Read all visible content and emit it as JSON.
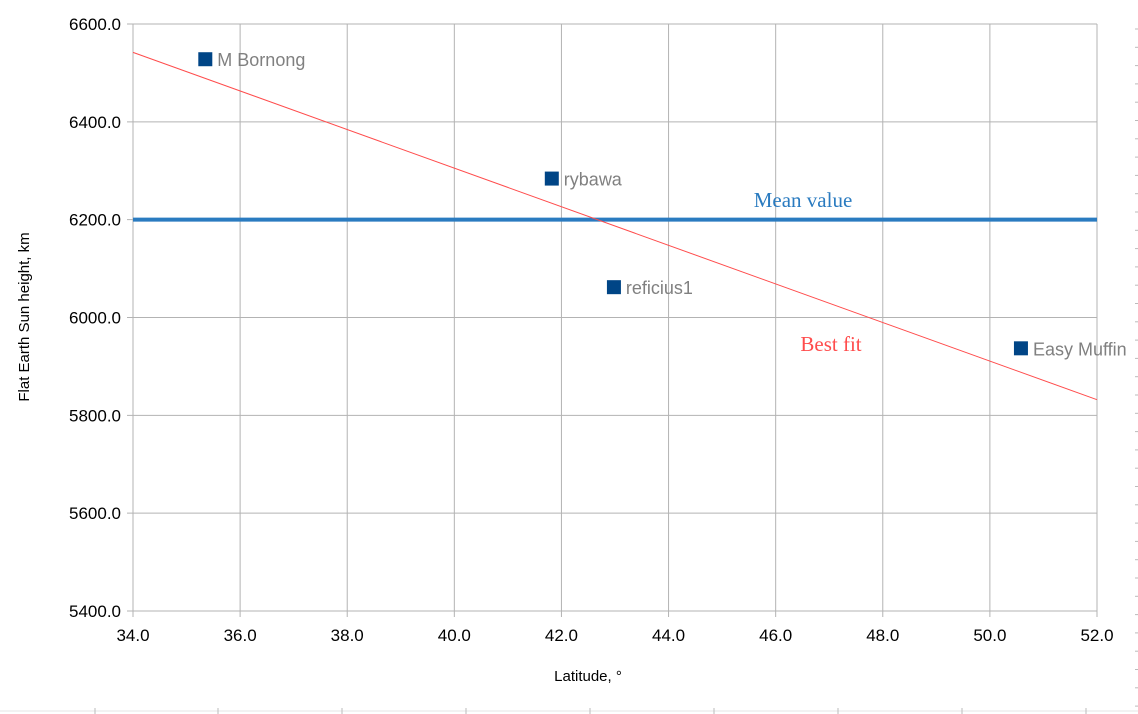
{
  "chart_data": {
    "type": "scatter",
    "xlabel": "Latitude, °",
    "ylabel": "Flat Earth Sun height, km",
    "xlim": [
      34,
      52
    ],
    "ylim": [
      5400,
      6600
    ],
    "x_ticks": [
      "34.0",
      "36.0",
      "38.0",
      "40.0",
      "42.0",
      "44.0",
      "46.0",
      "48.0",
      "50.0",
      "52.0"
    ],
    "y_ticks": [
      "5400.0",
      "5600.0",
      "5800.0",
      "6000.0",
      "6200.0",
      "6400.0",
      "6600.0"
    ],
    "grid": true,
    "points": [
      {
        "label": "M Bornong",
        "x": 35.35,
        "y": 6528
      },
      {
        "label": "rybawa",
        "x": 41.82,
        "y": 6284
      },
      {
        "label": "reficius1",
        "x": 42.98,
        "y": 6062
      },
      {
        "label": "Easy Muffin",
        "x": 50.58,
        "y": 5937
      }
    ],
    "mean_line": {
      "label": "Mean value",
      "y": 6200
    },
    "best_fit_line": {
      "label": "Best fit",
      "x": [
        34,
        52
      ],
      "y": [
        6542,
        5832
      ]
    },
    "colors": {
      "points": "#004586",
      "mean": "#2a7bc0",
      "best_fit": "#ff4c4c",
      "grid": "#b3b3b3",
      "point_label": "#808080"
    }
  }
}
